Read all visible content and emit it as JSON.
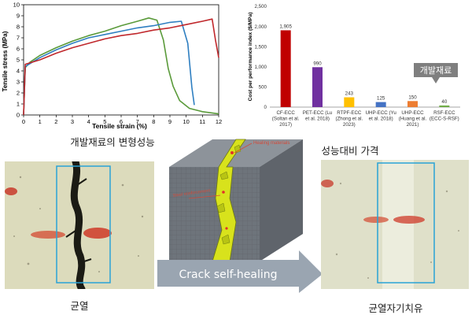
{
  "colors": {
    "green": "#5a9a3a",
    "blue": "#2f7fc1",
    "red": "#c0282c",
    "bar_colors": [
      "#c00000",
      "#7030a0",
      "#ffc000",
      "#4472c4",
      "#ed7d31",
      "#70ad47"
    ],
    "highlight": "#29a3d6",
    "arrow": "#9aa5b1",
    "badge": "#7f7f7f"
  },
  "chart_data": [
    {
      "type": "line",
      "xlabel": "Tensile strain (%)",
      "ylabel": "Tensile stress (MPa)",
      "xlim": [
        0,
        12
      ],
      "ylim": [
        0,
        10
      ],
      "xticks": [
        0,
        1,
        2,
        3,
        4,
        5,
        6,
        7,
        8,
        9,
        10,
        11,
        12
      ],
      "yticks": [
        0,
        1,
        2,
        3,
        4,
        5,
        6,
        7,
        8,
        9,
        10
      ],
      "grid": false,
      "series": [
        {
          "color": "green",
          "points": [
            [
              0,
              0
            ],
            [
              0.1,
              4.3
            ],
            [
              0.4,
              4.8
            ],
            [
              1,
              5.4
            ],
            [
              2,
              6.1
            ],
            [
              3,
              6.7
            ],
            [
              4,
              7.2
            ],
            [
              5,
              7.6
            ],
            [
              6,
              8.1
            ],
            [
              7,
              8.5
            ],
            [
              7.7,
              8.8
            ],
            [
              8.2,
              8.6
            ],
            [
              8.6,
              6.8
            ],
            [
              8.9,
              4.2
            ],
            [
              9.2,
              2.6
            ],
            [
              9.6,
              1.3
            ],
            [
              10.2,
              0.6
            ],
            [
              11,
              0.3
            ],
            [
              12,
              0.1
            ]
          ]
        },
        {
          "color": "blue",
          "points": [
            [
              0,
              0
            ],
            [
              0.1,
              4.4
            ],
            [
              1,
              5.2
            ],
            [
              2,
              5.9
            ],
            [
              3,
              6.5
            ],
            [
              4,
              7.0
            ],
            [
              5,
              7.3
            ],
            [
              6,
              7.6
            ],
            [
              7,
              7.9
            ],
            [
              8,
              8.1
            ],
            [
              9,
              8.4
            ],
            [
              9.7,
              8.5
            ],
            [
              10.1,
              6.5
            ],
            [
              10.35,
              2.5
            ],
            [
              10.5,
              0.9
            ]
          ]
        },
        {
          "color": "red",
          "points": [
            [
              0,
              0
            ],
            [
              0.1,
              4.6
            ],
            [
              1,
              5.0
            ],
            [
              2,
              5.6
            ],
            [
              3,
              6.1
            ],
            [
              4,
              6.5
            ],
            [
              5,
              6.9
            ],
            [
              6,
              7.2
            ],
            [
              7,
              7.4
            ],
            [
              8,
              7.7
            ],
            [
              9,
              7.9
            ],
            [
              10,
              8.2
            ],
            [
              11,
              8.5
            ],
            [
              11.6,
              8.7
            ],
            [
              11.8,
              6.8
            ],
            [
              12,
              5.2
            ]
          ]
        }
      ]
    },
    {
      "type": "bar",
      "ylabel": "Cost per performance index ($/MPa)",
      "ylim": [
        0,
        2500
      ],
      "yticks": [
        0,
        500,
        1000,
        1500,
        2000,
        2500
      ],
      "categories": [
        [
          "CF-ECC",
          "(Soltan et al.",
          "2017)"
        ],
        [
          "PET-ECC (Lu",
          "et al. 2018)"
        ],
        [
          "RTPF-ECC",
          "(Zhong et al.",
          "2023)"
        ],
        [
          "UHP-ECC (Yu",
          "et al. 2018)"
        ],
        [
          "UHP-ECC",
          "(Huang et al.",
          "2021)"
        ],
        [
          "RSF-ECC",
          "(ECC-S-RSF)"
        ]
      ],
      "values": [
        1905,
        990,
        243,
        125,
        150,
        40
      ],
      "value_labels": [
        "1,905",
        "990",
        "243",
        "125",
        "150",
        "40"
      ],
      "annotation": "개발재료"
    }
  ],
  "captions": {
    "left_chart": "개발재료의 변형성능",
    "right_chart": "성능대비 가격",
    "left_photo": "균열",
    "right_photo": "균열자기치유"
  },
  "diagram": {
    "healing_label": "Healing materials",
    "crack_label": "Steel reinforcement",
    "arrow_label": "Crack self-healing"
  }
}
